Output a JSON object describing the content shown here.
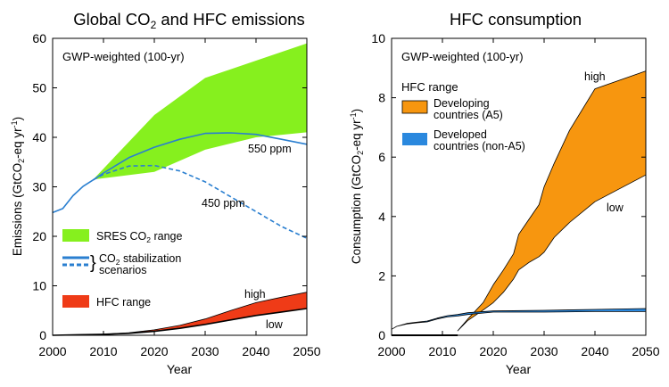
{
  "chart_data": [
    {
      "type": "area",
      "title": "Global CO2 and HFC emissions",
      "subtitle": "GWP-weighted (100-yr)",
      "xlabel": "Year",
      "ylabel": "Emissions (GtCO2-eq yr-1)",
      "xlim": [
        2000,
        2050
      ],
      "ylim": [
        0,
        60
      ],
      "xticks": [
        2000,
        2010,
        2020,
        2030,
        2040,
        2050
      ],
      "yticks": [
        0,
        10,
        20,
        30,
        40,
        50,
        60
      ],
      "grid": false,
      "legend_position": "left",
      "legend": {
        "sres": "SRES CO2 range",
        "stab_line1": "CO2 stabilization",
        "stab_line2": "scenarios",
        "hfc": "HFC range"
      },
      "annotations": {
        "ppm550": "550 ppm",
        "ppm450": "450 ppm",
        "high": "high",
        "low": "low"
      },
      "series": [
        {
          "name": "SRES CO2 range",
          "kind": "band",
          "color": "#86f01e",
          "x": [
            2008,
            2020,
            2030,
            2040,
            2050
          ],
          "low": [
            31.5,
            33,
            37.5,
            40,
            41
          ],
          "high": [
            31.5,
            44.5,
            52,
            55.5,
            59
          ]
        },
        {
          "name": "550 ppm",
          "kind": "line",
          "color": "#2a7fd0",
          "dash": false,
          "x": [
            2000,
            2002,
            2004,
            2006,
            2008,
            2010,
            2015,
            2020,
            2025,
            2030,
            2035,
            2040,
            2045,
            2050
          ],
          "y": [
            24.8,
            25.6,
            28.2,
            30.1,
            31.4,
            32.8,
            35.9,
            38,
            39.6,
            40.8,
            40.9,
            40.6,
            39.6,
            38.6
          ]
        },
        {
          "name": "450 ppm",
          "kind": "line",
          "color": "#2a7fd0",
          "dash": true,
          "x": [
            2008,
            2010,
            2015,
            2020,
            2025,
            2030,
            2035,
            2040,
            2045,
            2050
          ],
          "y": [
            31.4,
            32.5,
            34.2,
            34.3,
            33.2,
            31,
            28,
            25,
            22,
            19.6
          ]
        },
        {
          "name": "HFC range",
          "kind": "band",
          "color": "#ef3b17",
          "x": [
            2000,
            2005,
            2010,
            2015,
            2020,
            2025,
            2030,
            2035,
            2040,
            2045,
            2050
          ],
          "low": [
            0,
            0.1,
            0.2,
            0.4,
            0.8,
            1.4,
            2.2,
            3.1,
            4.0,
            4.7,
            5.4
          ],
          "high": [
            0,
            0.1,
            0.2,
            0.5,
            1.1,
            2.0,
            3.3,
            5.0,
            6.6,
            7.7,
            8.7
          ]
        }
      ]
    },
    {
      "type": "area",
      "title": "HFC consumption",
      "subtitle": "GWP-weighted (100-yr)",
      "xlabel": "Year",
      "ylabel": "Consumption (GtCO2-eq yr-1)",
      "xlim": [
        2000,
        2050
      ],
      "ylim": [
        0,
        10
      ],
      "xticks": [
        2000,
        2010,
        2020,
        2030,
        2040,
        2050
      ],
      "yticks": [
        0,
        2,
        4,
        6,
        8,
        10
      ],
      "grid": false,
      "legend_position": "top-left",
      "legend": {
        "title": "HFC range",
        "a5_line1": "Developing",
        "a5_line2": "countries (A5)",
        "na5_line1": "Developed",
        "na5_line2": "countries (non-A5)"
      },
      "annotations": {
        "high": "high",
        "low": "low"
      },
      "series": [
        {
          "name": "Developing countries (A5)",
          "kind": "band",
          "color": "#f7960f",
          "x": [
            2013,
            2015,
            2018,
            2020,
            2022,
            2024,
            2025,
            2027,
            2029,
            2030,
            2032,
            2035,
            2040,
            2050
          ],
          "low": [
            0.15,
            0.5,
            0.85,
            1.1,
            1.45,
            1.9,
            2.2,
            2.45,
            2.65,
            2.8,
            3.3,
            3.8,
            4.5,
            5.4
          ],
          "high": [
            0.15,
            0.55,
            1.1,
            1.7,
            2.2,
            2.75,
            3.4,
            3.9,
            4.4,
            5.0,
            5.8,
            6.9,
            8.3,
            8.9
          ]
        },
        {
          "name": "Developed countries (non-A5)",
          "kind": "band",
          "color": "#2a88de",
          "x": [
            2000,
            2001,
            2003,
            2005,
            2007,
            2009,
            2011,
            2013,
            2015,
            2020,
            2030,
            2040,
            2050
          ],
          "low": [
            0.2,
            0.3,
            0.38,
            0.42,
            0.45,
            0.55,
            0.62,
            0.65,
            0.7,
            0.78,
            0.78,
            0.8,
            0.8
          ],
          "high": [
            0.2,
            0.3,
            0.4,
            0.44,
            0.48,
            0.58,
            0.66,
            0.7,
            0.76,
            0.82,
            0.84,
            0.87,
            0.9
          ]
        },
        {
          "name": "zero baseline",
          "kind": "line",
          "color": "#000000",
          "dash": false,
          "x": [
            2000,
            2013
          ],
          "y": [
            0,
            0
          ]
        }
      ]
    }
  ]
}
